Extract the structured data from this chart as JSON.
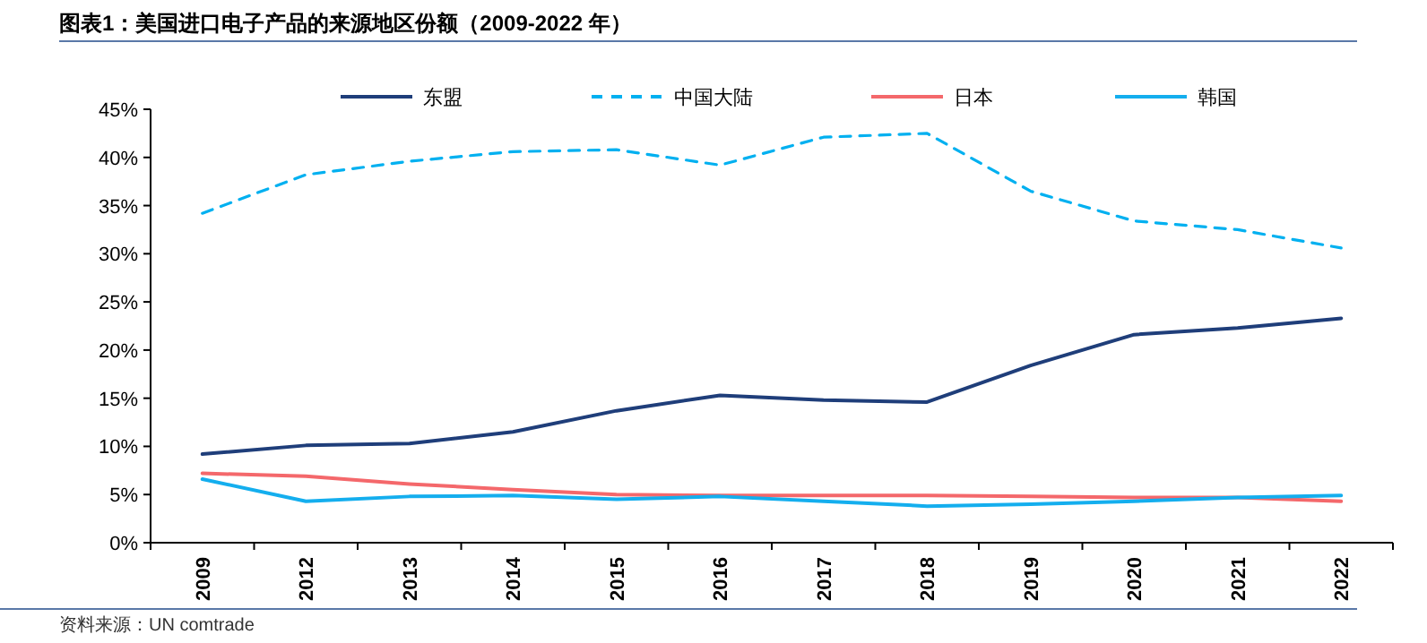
{
  "chart_data": {
    "type": "line",
    "title": "图表1：美国进口电子产品的来源地区份额（2009-2022 年）",
    "categories": [
      "2009",
      "2012",
      "2013",
      "2014",
      "2015",
      "2016",
      "2017",
      "2018",
      "2019",
      "2020",
      "2021",
      "2022"
    ],
    "series": [
      {
        "name": "东盟",
        "color": "#1f3e7a",
        "line_style": "solid",
        "values": [
          9.2,
          10.1,
          10.3,
          11.5,
          13.7,
          15.3,
          14.8,
          14.6,
          18.4,
          21.6,
          22.3,
          23.3
        ]
      },
      {
        "name": "中国大陆",
        "color": "#00b0f0",
        "line_style": "dashed",
        "values": [
          34.2,
          38.2,
          39.6,
          40.6,
          40.8,
          39.2,
          42.1,
          42.5,
          36.5,
          33.4,
          32.5,
          30.6
        ]
      },
      {
        "name": "日本",
        "color": "#f4686b",
        "line_style": "solid",
        "values": [
          7.2,
          6.9,
          6.1,
          5.5,
          5.0,
          4.9,
          4.9,
          4.9,
          4.8,
          4.7,
          4.7,
          4.3
        ]
      },
      {
        "name": "韩国",
        "color": "#14aeee",
        "line_style": "solid",
        "values": [
          6.6,
          4.3,
          4.8,
          4.9,
          4.5,
          4.8,
          4.3,
          3.8,
          4.0,
          4.3,
          4.7,
          4.9
        ]
      }
    ],
    "ylim": [
      0,
      45
    ],
    "yticks": [
      {
        "value": 0,
        "label": "0%"
      },
      {
        "value": 5,
        "label": "5%"
      },
      {
        "value": 10,
        "label": "10%"
      },
      {
        "value": 15,
        "label": "15%"
      },
      {
        "value": 20,
        "label": "20%"
      },
      {
        "value": 25,
        "label": "25%"
      },
      {
        "value": 30,
        "label": "30%"
      },
      {
        "value": 35,
        "label": "35%"
      },
      {
        "value": 40,
        "label": "40%"
      },
      {
        "value": 45,
        "label": "45%"
      }
    ],
    "grid": false,
    "legend": "top",
    "marker": "none",
    "annotations": [
      "资料来源：UN comtrade"
    ]
  }
}
